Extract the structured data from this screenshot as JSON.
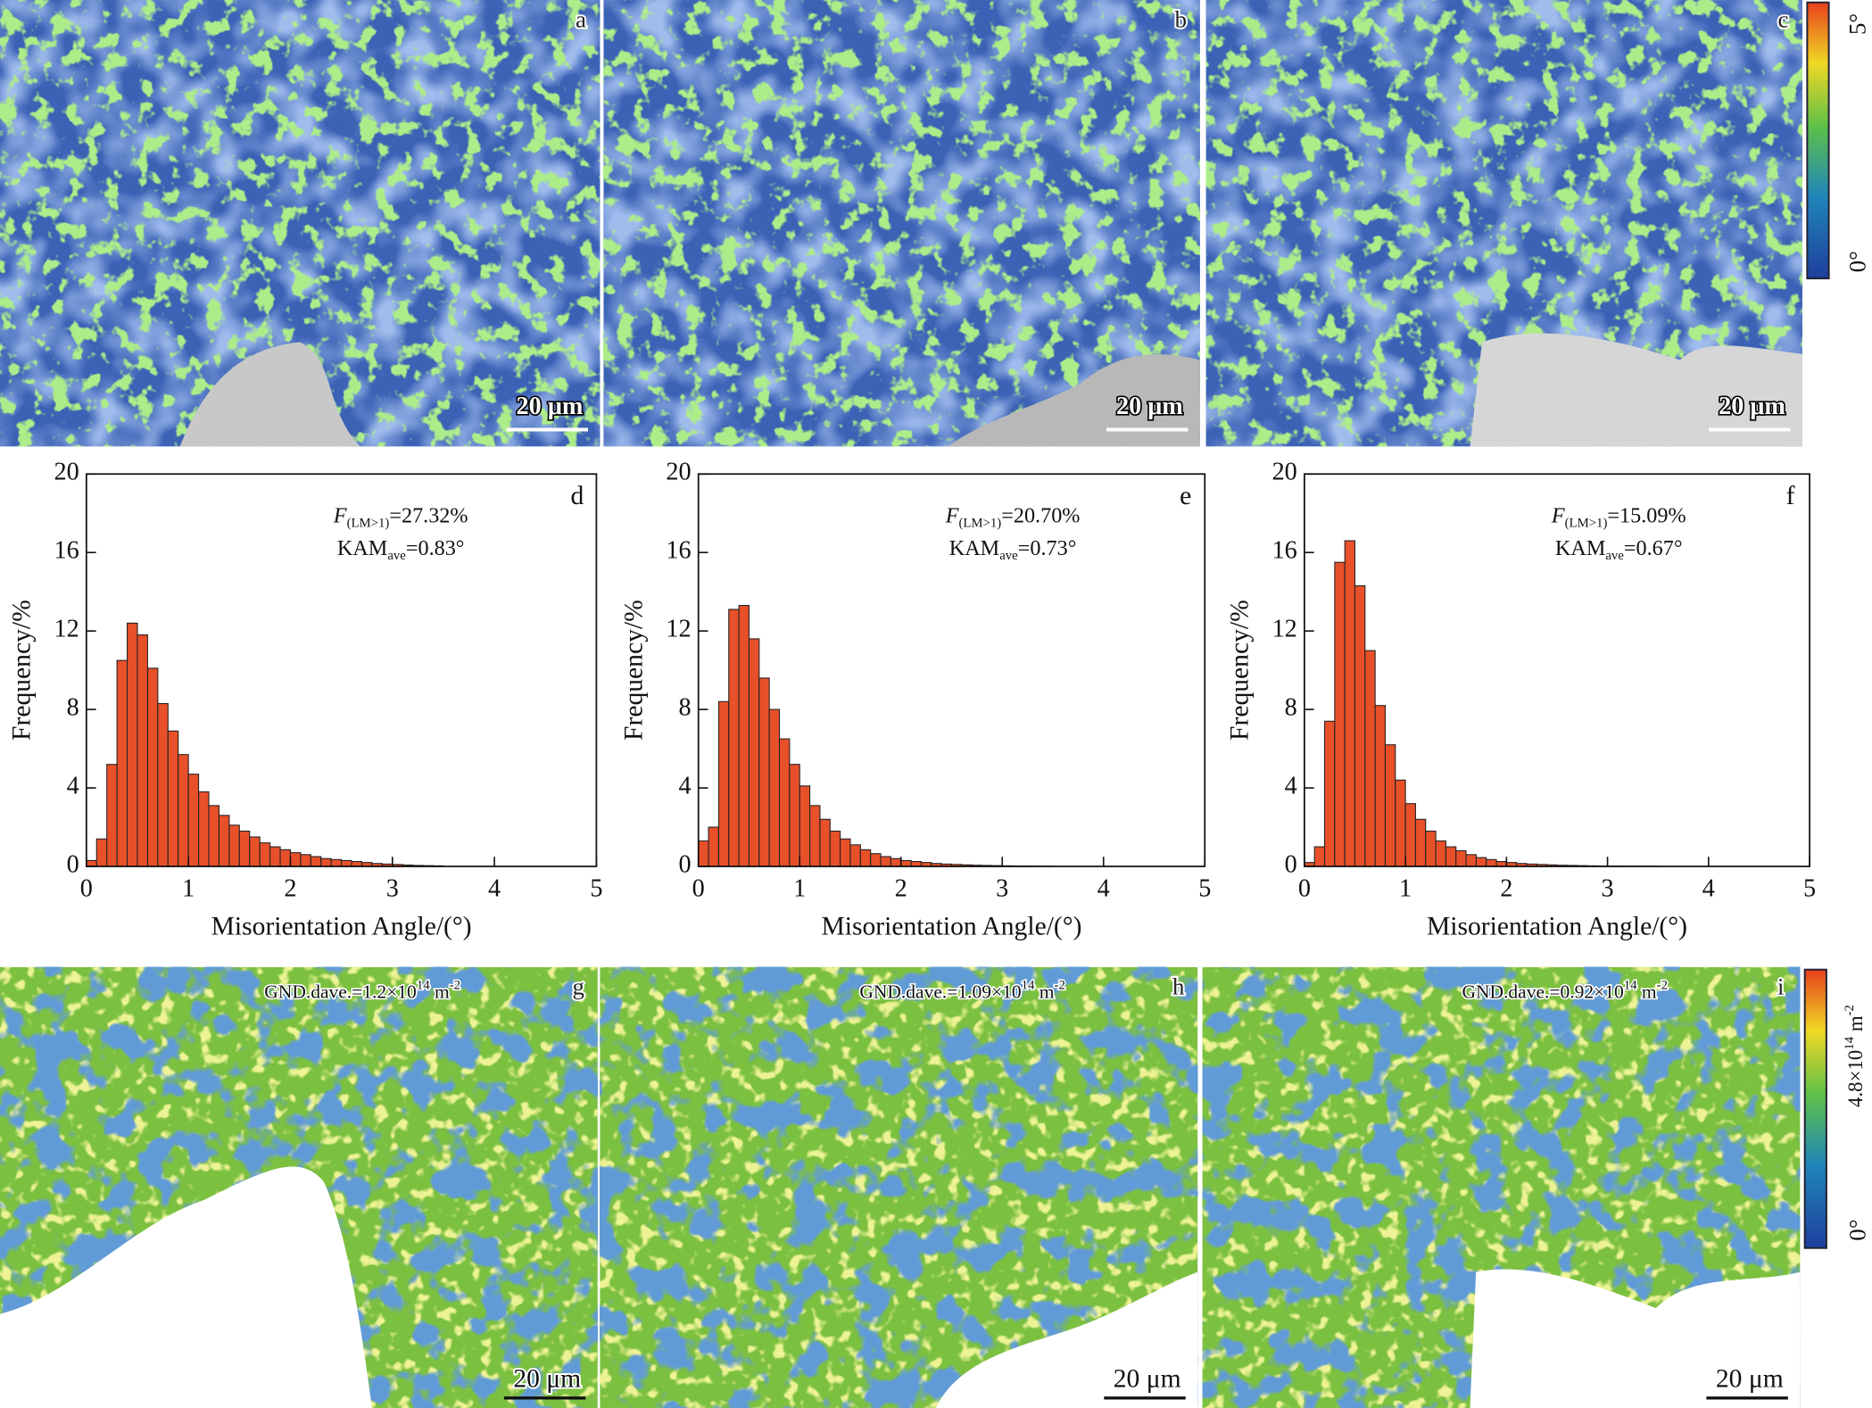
{
  "images": {
    "top": [
      {
        "label": "a",
        "scale_bar": "20 μm"
      },
      {
        "label": "b",
        "scale_bar": "20 μm"
      },
      {
        "label": "c",
        "scale_bar": "20 μm"
      }
    ],
    "bottom": [
      {
        "label": "g",
        "scale_bar": "20 μm",
        "annotation": {
          "text": "GND.dave.=1.2×10",
          "exponent": "14",
          "unit": " m",
          "unit_exponent": "-2"
        }
      },
      {
        "label": "h",
        "scale_bar": "20 μm",
        "annotation": {
          "text": "GND.dave.=1.09×10",
          "exponent": "14",
          "unit": " m",
          "unit_exponent": "-2"
        }
      },
      {
        "label": "i",
        "scale_bar": "20 μm",
        "annotation": {
          "text": "GND.dave.=0.92×10",
          "exponent": "14",
          "unit": " m",
          "unit_exponent": "-2"
        }
      }
    ]
  },
  "colorbars": {
    "kam": {
      "max": "5°",
      "min": "0°"
    },
    "gnd": {
      "max_value": "4.8×10",
      "max_exponent": "14",
      "unit": " m",
      "unit_exponent": "-2",
      "min": "0°"
    }
  },
  "chart_data": [
    {
      "type": "histogram",
      "label": "d",
      "x_label": "Misorientation Angle/(°)",
      "y_label": "Frequency/%",
      "annotations": [
        {
          "symbol": "F",
          "subscript": "(LM>1)",
          "text": "=27.32%"
        },
        {
          "symbol": "KAM",
          "subscript": "ave",
          "text": "=0.83°"
        }
      ],
      "color": "#e8502a",
      "xlim": [
        0,
        5
      ],
      "ylim": [
        0,
        20
      ],
      "xticks": [
        0,
        1,
        2,
        3,
        4,
        5
      ],
      "yticks": [
        0,
        4,
        8,
        12,
        16,
        20
      ],
      "bins": [
        0,
        0.1,
        0.2,
        0.3,
        0.4,
        0.5,
        0.6,
        0.7,
        0.8,
        0.9,
        1.0,
        1.1,
        1.2,
        1.3,
        1.4,
        1.5,
        1.6,
        1.7,
        1.8,
        1.9,
        2.0,
        2.1,
        2.2,
        2.3,
        2.4,
        2.5,
        2.6,
        2.7,
        2.8,
        2.9,
        3.0,
        3.1,
        3.2,
        3.3,
        3.4,
        3.5
      ],
      "counts": [
        0.3,
        1.4,
        5.2,
        10.5,
        12.4,
        11.8,
        10.1,
        8.3,
        6.9,
        5.7,
        4.7,
        3.8,
        3.1,
        2.6,
        2.1,
        1.8,
        1.5,
        1.2,
        1.0,
        0.85,
        0.7,
        0.6,
        0.5,
        0.4,
        0.35,
        0.3,
        0.25,
        0.2,
        0.15,
        0.12,
        0.1,
        0.07,
        0.05,
        0.04,
        0.03
      ]
    },
    {
      "type": "histogram",
      "label": "e",
      "x_label": "Misorientation Angle/(°)",
      "y_label": "Frequency/%",
      "annotations": [
        {
          "symbol": "F",
          "subscript": "(LM>1)",
          "text": "=20.70%"
        },
        {
          "symbol": "KAM",
          "subscript": "ave",
          "text": "=0.73°"
        }
      ],
      "color": "#e8502a",
      "xlim": [
        0,
        5
      ],
      "ylim": [
        0,
        20
      ],
      "xticks": [
        0,
        1,
        2,
        3,
        4,
        5
      ],
      "yticks": [
        0,
        4,
        8,
        12,
        16,
        20
      ],
      "bins": [
        0,
        0.1,
        0.2,
        0.3,
        0.4,
        0.5,
        0.6,
        0.7,
        0.8,
        0.9,
        1.0,
        1.1,
        1.2,
        1.3,
        1.4,
        1.5,
        1.6,
        1.7,
        1.8,
        1.9,
        2.0,
        2.1,
        2.2,
        2.3,
        2.4,
        2.5,
        2.6,
        2.7,
        2.8,
        2.9,
        3.0,
        3.1,
        3.2,
        3.3,
        3.4,
        3.5
      ],
      "counts": [
        1.3,
        2.0,
        8.4,
        13.1,
        13.3,
        11.6,
        9.6,
        8.0,
        6.5,
        5.2,
        4.1,
        3.1,
        2.4,
        1.8,
        1.4,
        1.1,
        0.85,
        0.65,
        0.5,
        0.4,
        0.3,
        0.25,
        0.2,
        0.15,
        0.12,
        0.1,
        0.08,
        0.06,
        0.05,
        0.04,
        0.03,
        0.02,
        0.02,
        0.01,
        0.01
      ]
    },
    {
      "type": "histogram",
      "label": "f",
      "x_label": "Misorientation Angle/(°)",
      "y_label": "Frequency/%",
      "annotations": [
        {
          "symbol": "F",
          "subscript": "(LM>1)",
          "text": "=15.09%"
        },
        {
          "symbol": "KAM",
          "subscript": "ave",
          "text": "=0.67°"
        }
      ],
      "color": "#e8502a",
      "xlim": [
        0,
        5
      ],
      "ylim": [
        0,
        20
      ],
      "xticks": [
        0,
        1,
        2,
        3,
        4,
        5
      ],
      "yticks": [
        0,
        4,
        8,
        12,
        16,
        20
      ],
      "bins": [
        0,
        0.1,
        0.2,
        0.3,
        0.4,
        0.5,
        0.6,
        0.7,
        0.8,
        0.9,
        1.0,
        1.1,
        1.2,
        1.3,
        1.4,
        1.5,
        1.6,
        1.7,
        1.8,
        1.9,
        2.0,
        2.1,
        2.2,
        2.3,
        2.4,
        2.5,
        2.6,
        2.7,
        2.8,
        2.9,
        3.0,
        3.1,
        3.2,
        3.3,
        3.4,
        3.5
      ],
      "counts": [
        0.2,
        1.0,
        7.4,
        15.5,
        16.6,
        14.3,
        11.0,
        8.2,
        6.2,
        4.4,
        3.2,
        2.4,
        1.8,
        1.3,
        1.0,
        0.8,
        0.6,
        0.45,
        0.35,
        0.25,
        0.2,
        0.15,
        0.12,
        0.1,
        0.08,
        0.06,
        0.05,
        0.04,
        0.03,
        0.02,
        0.02,
        0.01,
        0.01,
        0.01,
        0.01
      ]
    }
  ]
}
